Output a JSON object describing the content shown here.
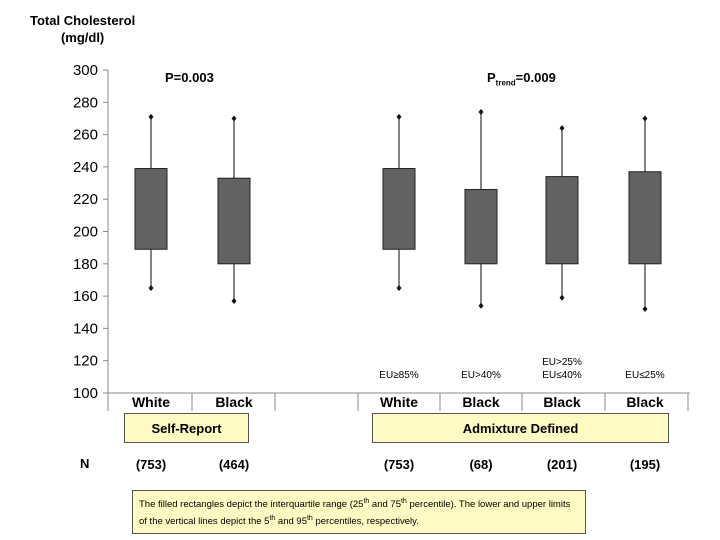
{
  "y_axis_title": [
    "Total Cholesterol",
    "(mg/dl)"
  ],
  "p_values": {
    "left": "P=0.003",
    "right_prefix": "P",
    "right_sub": "trend",
    "right_value": "=0.009"
  },
  "chart_data": {
    "type": "boxplot",
    "ylabel": "Total Cholesterol (mg/dl)",
    "ylim": [
      100,
      300
    ],
    "yticks": [
      100,
      120,
      140,
      160,
      180,
      200,
      220,
      240,
      260,
      280,
      300
    ],
    "categories": [
      {
        "label": "White",
        "sublabel": "",
        "group": "Self-Report",
        "n": "(753)",
        "p5": 165,
        "q1": 189,
        "q3": 239,
        "p95": 271
      },
      {
        "label": "Black",
        "sublabel": "",
        "group": "Self-Report",
        "n": "(464)",
        "p5": 157,
        "q1": 180,
        "q3": 233,
        "p95": 270
      },
      {
        "label": "White",
        "sublabel": "EU≥85%",
        "group": "Admixture Defined",
        "n": "(753)",
        "p5": 165,
        "q1": 189,
        "q3": 239,
        "p95": 271
      },
      {
        "label": "Black",
        "sublabel": "EU>40%",
        "group": "Admixture Defined",
        "n": "(68)",
        "p5": 154,
        "q1": 180,
        "q3": 226,
        "p95": 274
      },
      {
        "label": "Black",
        "sublabel": "EU>25%\nEU≤40%",
        "group": "Admixture Defined",
        "n": "(201)",
        "p5": 159,
        "q1": 180,
        "q3": 234,
        "p95": 264
      },
      {
        "label": "Black",
        "sublabel": "EU≤25%",
        "group": "Admixture Defined",
        "n": "(195)",
        "p5": 152,
        "q1": 180,
        "q3": 237,
        "p95": 270
      }
    ]
  },
  "groups": {
    "self_report": "Self-Report",
    "admixture": "Admixture Defined"
  },
  "n_label": "N",
  "footnote": {
    "p1": "The filled rectangles depict the interquartile range (25",
    "s1": "th",
    "p2": "  and 75",
    "s2": "th",
    "p3": " percentile). The lower and upper limits of the vertical lines depict the 5",
    "s3": "th",
    "p4": " and 95",
    "s4": "th",
    "p5": " percentiles, respectively."
  },
  "colors": {
    "box_fill": "#626262",
    "whisker": "#333333",
    "axis": "#888888",
    "highlight": "#fff9c4"
  }
}
